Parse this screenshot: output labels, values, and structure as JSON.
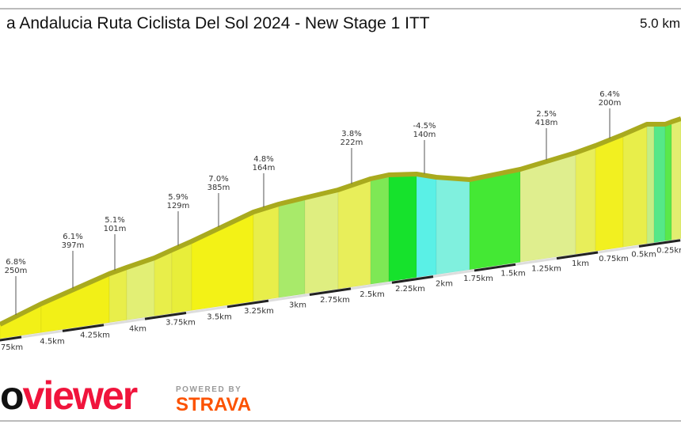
{
  "header": {
    "title": "a Andalucia Ruta Ciclista Del Sol 2024 - New Stage 1 ITT",
    "distance": "5.0 km"
  },
  "profile": {
    "segment_colors": [
      "#f2f017",
      "#f2f017",
      "#e8ee4a",
      "#e2ef75",
      "#e8ee4a",
      "#e8ee3a",
      "#f3f216",
      "#e8ee4a",
      "#a8ea6a",
      "#dfee80",
      "#e8ee5a",
      "#7ee855",
      "#16e22c",
      "#5af0e6",
      "#80f0de",
      "#44e834",
      "#dfee8e",
      "#e8ee5a",
      "#f2f020",
      "#e8ee4a",
      "#c4ee85",
      "#55e888",
      "#5ae84a",
      "#e2ee70"
    ],
    "annotations": [
      {
        "grade": "6.8%",
        "length": "250m"
      },
      {
        "grade": "6.1%",
        "length": "397m"
      },
      {
        "grade": "5.1%",
        "length": "101m"
      },
      {
        "grade": "5.9%",
        "length": "129m"
      },
      {
        "grade": "7.0%",
        "length": "385m"
      },
      {
        "grade": "4.8%",
        "length": "164m"
      },
      {
        "grade": "3.8%",
        "length": "222m"
      },
      {
        "grade": "-4.5%",
        "length": "140m"
      },
      {
        "grade": "2.5%",
        "length": "418m"
      },
      {
        "grade": "6.4%",
        "length": "200m"
      }
    ],
    "km_markers": [
      "75km",
      "4.5km",
      "4.25km",
      "4km",
      "3.75km",
      "3.5km",
      "3.25km",
      "3km",
      "2.75km",
      "2.5km",
      "2.25km",
      "2km",
      "1.75km",
      "1.5km",
      "1.25km",
      "1km",
      "0.75km",
      "0.5km",
      "0.25km"
    ]
  },
  "footer": {
    "logo": "oviewer",
    "powered_by": "POWERED BY",
    "strava": "STRAVA",
    "logo_color": "#f0143c",
    "strava_color": "#fc5200"
  }
}
